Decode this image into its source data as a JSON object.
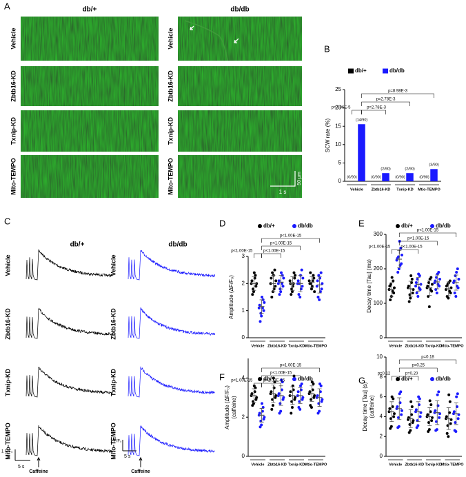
{
  "panel_a": {
    "label": "A",
    "columns": [
      "db/+",
      "db/db"
    ],
    "rows": [
      "Vehicle",
      "Zbtb16-KD",
      "Txnip-KD",
      "Mito-TEMPO"
    ],
    "scale_y": "50 µm",
    "scale_x": "1 s"
  },
  "panel_c": {
    "label": "C",
    "columns": [
      "db/+",
      "db/db"
    ],
    "rows": [
      "Vehicle",
      "Zbtb16-KD",
      "Txnip-KD",
      "Mito-TEMPO"
    ],
    "scale_y": "1 F/F₀",
    "scale_x": "5 s",
    "stimulus": "Caffeine"
  },
  "chart_data": [
    {
      "type": "bar",
      "panel": "B",
      "ylabel": "SCW rate (%)",
      "categories": [
        "Vehicle",
        "Zbtb16-KD",
        "Txnip-KD",
        "Mtio-TEMPO"
      ],
      "series": [
        {
          "name": "db/+",
          "color": "#000000",
          "values": [
            0,
            0,
            0,
            0
          ],
          "value_labels": [
            "(0/90)",
            "(0/90)",
            "(0/90)",
            "(0/90)"
          ]
        },
        {
          "name": "db/db",
          "color": "#1a1aff",
          "values": [
            15.56,
            2.22,
            2.22,
            3.33
          ],
          "value_labels": [
            "(14/90)",
            "(2/90)",
            "(2/90)",
            "(3/90)"
          ]
        }
      ],
      "ylim": [
        0,
        25
      ],
      "yticks": [
        0,
        5,
        10,
        15,
        20,
        25
      ],
      "annotations": [
        "p=7.06E-5",
        "p=2.78E-3",
        "p=2.78E-3",
        "p=8.98E-3"
      ]
    },
    {
      "type": "dot",
      "panel": "D",
      "ylabel": "Amplitude (ΔF/F₀)",
      "categories": [
        "Vehicle",
        "Zbtb16-KD",
        "Txnip-KD",
        "Mtio-TEMPO"
      ],
      "series": [
        {
          "name": "db/+",
          "color": "#000000",
          "values": [
            [
              2.0,
              2.3,
              1.7,
              2.1,
              1.9,
              2.4,
              1.6,
              2.0,
              2.2,
              1.8
            ],
            [
              2.0,
              2.5,
              1.7,
              2.2,
              1.9,
              2.3,
              1.5,
              2.1,
              1.8,
              2.4
            ],
            [
              2.1,
              2.4,
              1.7,
              2.0,
              2.2,
              1.9,
              1.6,
              2.3,
              2.0,
              1.8
            ],
            [
              2.1,
              2.3,
              1.8,
              2.0,
              2.2,
              1.9,
              2.4,
              1.7,
              2.1,
              2.0
            ]
          ],
          "means": [
            2.0,
            2.0,
            2.0,
            2.05
          ],
          "sd": [
            0.25,
            0.3,
            0.25,
            0.2
          ]
        },
        {
          "name": "db/db",
          "color": "#1a1aff",
          "values": [
            [
              1.1,
              1.4,
              0.8,
              1.2,
              1.0,
              1.5,
              0.6,
              1.3,
              1.1,
              0.9
            ],
            [
              2.0,
              2.3,
              1.7,
              2.1,
              1.9,
              2.4,
              1.6,
              2.2,
              2.0,
              1.8
            ],
            [
              2.0,
              2.5,
              1.5,
              2.1,
              1.9,
              2.3,
              1.6,
              2.2,
              1.8,
              2.0
            ],
            [
              1.9,
              2.4,
              1.4,
              2.1,
              1.8,
              2.2,
              1.5,
              2.0,
              1.7,
              2.3
            ]
          ],
          "means": [
            1.15,
            2.05,
            2.0,
            1.95
          ],
          "sd": [
            0.25,
            0.25,
            0.3,
            0.3
          ]
        }
      ],
      "ylim": [
        0,
        3
      ],
      "yticks": [
        0,
        1,
        2,
        3
      ],
      "annotations": [
        "p<1.00E-15",
        "p<1.00E-15",
        "p<1.00E-15",
        "p<1.00E-15"
      ]
    },
    {
      "type": "dot",
      "panel": "E",
      "ylabel": "Decay time [Tau] (ms)",
      "categories": [
        "Vehicle",
        "Zbtb16-KD",
        "Txnip-KD",
        "Mtio-TEMPO"
      ],
      "series": [
        {
          "name": "db/+",
          "color": "#000000",
          "values": [
            [
              140,
              165,
              120,
              150,
              130,
              175,
              110,
              145,
              135,
              155
            ],
            [
              145,
              170,
              115,
              150,
              130,
              180,
              105,
              140,
              160,
              125
            ],
            [
              145,
              175,
              90,
              150,
              135,
              170,
              120,
              155,
              140,
              160
            ],
            [
              140,
              165,
              115,
              150,
              130,
              160,
              120,
              145,
              135,
              155
            ]
          ],
          "means": [
            140,
            142,
            145,
            142
          ],
          "sd": [
            20,
            22,
            22,
            20
          ]
        },
        {
          "name": "db/db",
          "color": "#1a1aff",
          "values": [
            [
              225,
              260,
              200,
              230,
              215,
              280,
              190,
              240,
              210,
              235
            ],
            [
              150,
              180,
              120,
              160,
              140,
              185,
              130,
              155,
              145,
              170
            ],
            [
              160,
              190,
              130,
              165,
              150,
              185,
              140,
              170,
              155,
              175
            ],
            [
              160,
              200,
              120,
              165,
              145,
              190,
              130,
              170,
              150,
              180
            ]
          ],
          "means": [
            228,
            155,
            162,
            160
          ],
          "sd": [
            25,
            20,
            20,
            22
          ]
        }
      ],
      "ylim": [
        0,
        300
      ],
      "yticks": [
        0,
        100,
        200,
        300
      ],
      "annotations": [
        "p<1.00E-15",
        "p<1.00E-15",
        "p<1.00E-15",
        "p<1.00E-15"
      ]
    },
    {
      "type": "dot",
      "panel": "F",
      "ylabel": "Amplitude (ΔF/F₀)",
      "ylabel2": "(caffeine)",
      "categories": [
        "Vehicle",
        "Zbtb16-KD",
        "Txnip-KD",
        "Mtio-TEMPO"
      ],
      "series": [
        {
          "name": "db/+",
          "color": "#000000",
          "values": [
            [
              3.1,
              3.5,
              2.7,
              3.2,
              2.9,
              3.6,
              2.6,
              3.0,
              3.3,
              2.8
            ],
            [
              3.2,
              3.8,
              2.6,
              3.3,
              3.0,
              4.0,
              2.4,
              3.1,
              3.5,
              2.9
            ],
            [
              3.1,
              4.1,
              2.5,
              3.3,
              2.9,
              3.6,
              2.2,
              3.0,
              3.4,
              2.8
            ],
            [
              3.2,
              3.7,
              2.5,
              3.3,
              3.0,
              3.8,
              2.6,
              3.1,
              3.4,
              2.9
            ]
          ],
          "means": [
            3.1,
            3.2,
            3.1,
            3.2
          ],
          "sd": [
            0.35,
            0.45,
            0.45,
            0.4
          ]
        },
        {
          "name": "db/db",
          "color": "#1a1aff",
          "values": [
            [
              2.1,
              2.5,
              1.6,
              2.2,
              1.9,
              2.7,
              1.5,
              2.0,
              2.3,
              1.8
            ],
            [
              3.1,
              3.8,
              2.3,
              3.2,
              2.9,
              3.9,
              2.2,
              3.0,
              3.4,
              2.7
            ],
            [
              3.1,
              3.7,
              2.4,
              3.3,
              2.9,
              3.6,
              2.5,
              3.0,
              3.4,
              2.8
            ],
            [
              3.0,
              3.6,
              2.3,
              3.1,
              2.8,
              3.7,
              2.2,
              2.9,
              3.3,
              2.7
            ]
          ],
          "means": [
            2.1,
            3.1,
            3.1,
            3.0
          ],
          "sd": [
            0.35,
            0.5,
            0.4,
            0.45
          ]
        }
      ],
      "ylim": [
        0,
        5
      ],
      "yticks": [
        0,
        2,
        4
      ],
      "annotations": [
        "p<1.00E-15",
        "p<1.00E-15",
        "p<1.00E-15",
        "p=1.00E-15"
      ]
    },
    {
      "type": "dot",
      "panel": "G",
      "ylabel": "Decay time [Tau] (s)",
      "ylabel2": "(caffeine)",
      "categories": [
        "Vehicle",
        "Zbtb16-KD",
        "Txnip-KD",
        "Mtio-TEMPO"
      ],
      "series": [
        {
          "name": "db/+",
          "color": "#000000",
          "values": [
            [
              4.5,
              5.8,
              3.0,
              4.8,
              4.0,
              6.0,
              2.8,
              4.3,
              5.0,
              3.8
            ],
            [
              3.7,
              5.0,
              2.6,
              3.9,
              3.4,
              5.5,
              2.4,
              3.6,
              4.2,
              3.2
            ],
            [
              4.0,
              5.2,
              2.7,
              4.2,
              3.6,
              5.6,
              2.5,
              3.9,
              4.5,
              3.4
            ],
            [
              3.8,
              5.5,
              2.0,
              4.0,
              3.3,
              6.2,
              2.3,
              3.7,
              4.4,
              3.1
            ]
          ],
          "means": [
            4.5,
            3.8,
            4.0,
            3.8
          ],
          "sd": [
            1.0,
            0.9,
            0.9,
            1.1
          ]
        },
        {
          "name": "db/db",
          "color": "#1a1aff",
          "values": [
            [
              4.8,
              6.5,
              3.0,
              5.0,
              4.2,
              6.3,
              2.9,
              4.6,
              5.4,
              3.9
            ],
            [
              4.5,
              5.8,
              3.1,
              4.7,
              4.0,
              6.0,
              2.9,
              4.4,
              5.2,
              3.6
            ],
            [
              4.4,
              6.5,
              2.7,
              4.6,
              3.9,
              6.2,
              2.6,
              4.3,
              5.1,
              3.5
            ],
            [
              4.3,
              6.3,
              2.5,
              4.5,
              3.8,
              6.0,
              2.6,
              4.2,
              5.0,
              3.4
            ]
          ],
          "means": [
            4.8,
            4.5,
            4.4,
            4.3
          ],
          "sd": [
            1.1,
            1.0,
            1.2,
            1.1
          ]
        }
      ],
      "ylim": [
        0,
        10
      ],
      "yticks": [
        0,
        2,
        4,
        6,
        8,
        10
      ],
      "annotations": [
        "p=0.12",
        "p=0.20",
        "p=0.25",
        "p=0.18"
      ]
    }
  ]
}
